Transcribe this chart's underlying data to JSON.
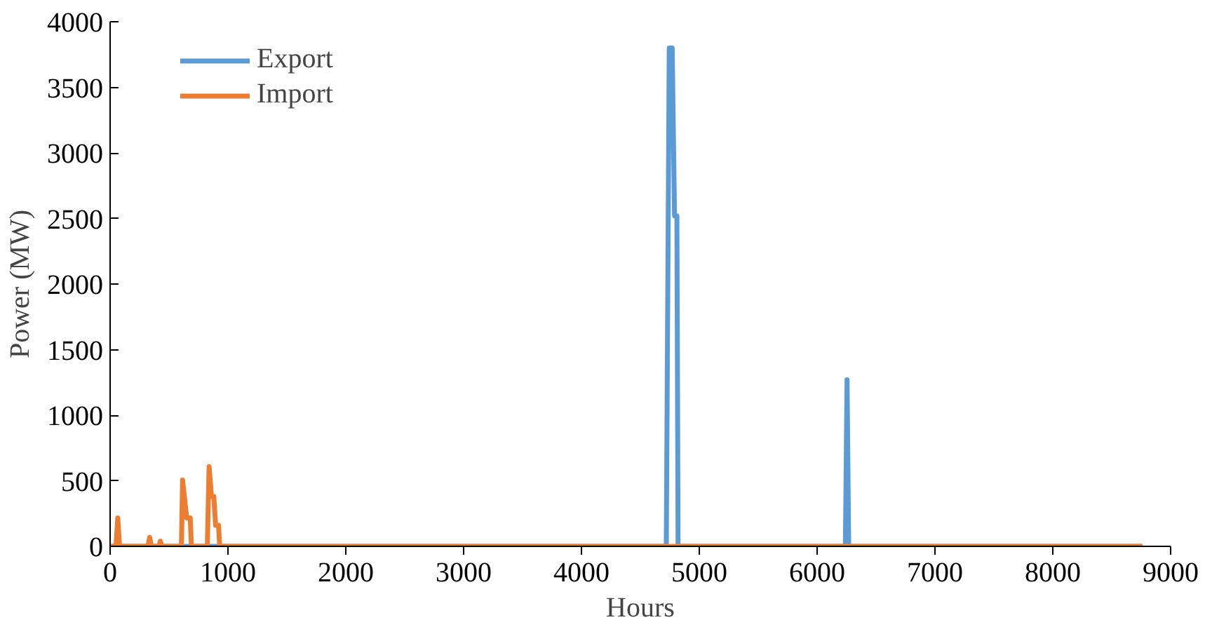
{
  "chart_data": {
    "type": "line",
    "xlabel": "Hours",
    "ylabel": "Power (MW)",
    "xlim": [
      0,
      9000
    ],
    "ylim": [
      0,
      4000
    ],
    "xticks": [
      0,
      1000,
      2000,
      3000,
      4000,
      5000,
      6000,
      7000,
      8000,
      9000
    ],
    "yticks": [
      0,
      500,
      1000,
      1500,
      2000,
      2500,
      3000,
      3500,
      4000
    ],
    "grid": false,
    "legend": "top left",
    "marker": "none",
    "line_style": "solid",
    "series": [
      {
        "name": "Export",
        "color": "#5b9bd5",
        "x": [
          0,
          4720,
          4730,
          4745,
          4770,
          4790,
          4810,
          4820,
          6240,
          6254,
          6268,
          8760
        ],
        "values": [
          0,
          0,
          1550,
          3800,
          3800,
          2520,
          2520,
          0,
          0,
          1270,
          0,
          0
        ]
      },
      {
        "name": "Import",
        "color": "#ed7d31",
        "x": [
          0,
          50,
          65,
          80,
          320,
          336,
          350,
          415,
          426,
          440,
          605,
          615,
          650,
          680,
          690,
          825,
          840,
          860,
          880,
          895,
          920,
          930,
          8760
        ],
        "values": [
          0,
          0,
          216,
          0,
          0,
          68,
          0,
          0,
          40,
          0,
          0,
          505,
          216,
          216,
          0,
          0,
          607,
          380,
          380,
          160,
          160,
          0,
          0
        ]
      }
    ]
  }
}
